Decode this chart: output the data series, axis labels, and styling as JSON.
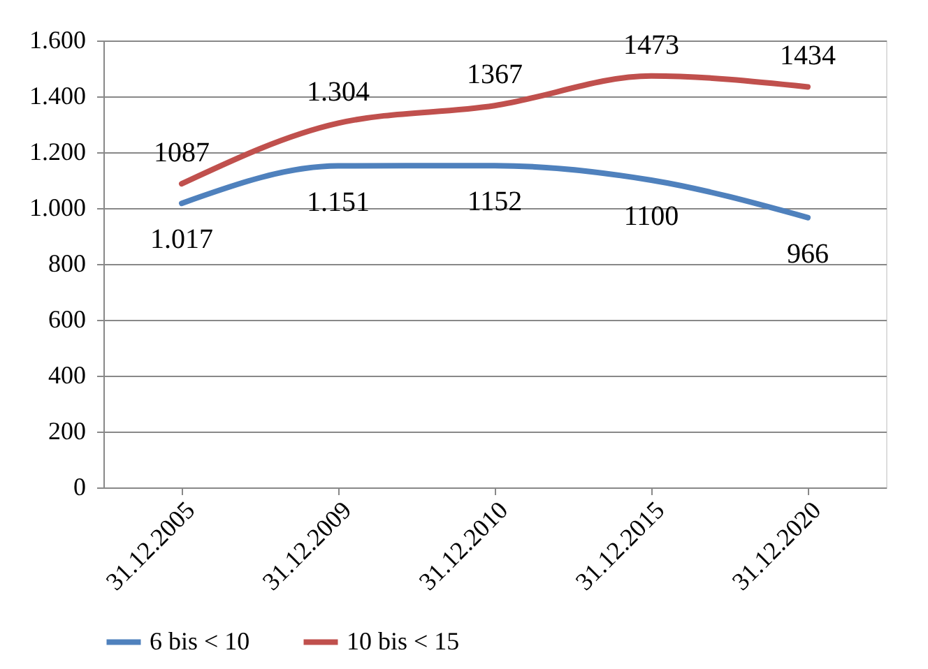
{
  "chart_data": {
    "type": "line",
    "categories": [
      "31.12.2005",
      "31.12.2009",
      "31.12.2010",
      "31.12.2015",
      "31.12.2020"
    ],
    "series": [
      {
        "name": "6 bis < 10",
        "color": "#4f81bd",
        "values": [
          1017,
          1151,
          1152,
          1100,
          966
        ],
        "value_labels": [
          "1.017",
          "1.151",
          "1152",
          "1100",
          "966"
        ]
      },
      {
        "name": "10 bis < 15",
        "color": "#c0504d",
        "values": [
          1087,
          1304,
          1367,
          1473,
          1434
        ],
        "value_labels": [
          "1087",
          "1.304",
          "1367",
          "1473",
          "1434"
        ]
      }
    ],
    "ylim": [
      0,
      1600
    ],
    "yticks": [
      0,
      200,
      400,
      600,
      800,
      {
        "value": 1000,
        "label": "1.000"
      },
      {
        "value": 1200,
        "label": "1.200"
      },
      {
        "value": 1400,
        "label": "1.400"
      },
      {
        "value": 1600,
        "label": "1.600"
      }
    ],
    "grid": "y",
    "legend": "bottom",
    "marker": "none",
    "line_style": "solid"
  }
}
